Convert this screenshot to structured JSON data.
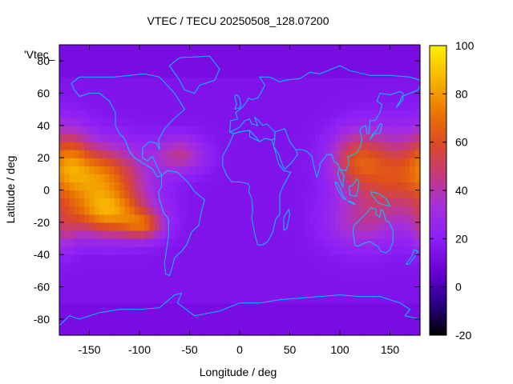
{
  "chart_data": {
    "type": "heatmap",
    "title": "VTEC / TECU 20250508_128.07200",
    "xlabel": "Longitude / deg",
    "ylabel": "Latitude / deg",
    "corner_label": "'Vtec_",
    "xlim": [
      -180,
      180
    ],
    "ylim": [
      -90,
      90
    ],
    "x_ticks": [
      -150,
      -100,
      -50,
      0,
      50,
      100,
      150
    ],
    "y_ticks": [
      -80,
      -60,
      -40,
      -20,
      0,
      20,
      40,
      60,
      80
    ],
    "colorbar": {
      "range": [
        -20,
        100
      ],
      "ticks": [
        -20,
        0,
        20,
        40,
        60,
        80,
        100
      ],
      "palette": [
        "#000000",
        "#2a0088",
        "#6a00d6",
        "#8d1ff7",
        "#a62fdb",
        "#c43a7a",
        "#dd4b21",
        "#ec7a00",
        "#f7b800",
        "#ffee00"
      ]
    },
    "coastline_color": "#00c8ff",
    "background_value": 15,
    "hotspots": [
      {
        "lon": -140,
        "lat": 8,
        "spread_lon": 30,
        "spread_lat": 14,
        "value": 72
      },
      {
        "lon": -130,
        "lat": -15,
        "spread_lon": 28,
        "spread_lat": 10,
        "value": 68
      },
      {
        "lon": -95,
        "lat": -22,
        "spread_lon": 14,
        "spread_lat": 6,
        "value": 48
      },
      {
        "lon": -60,
        "lat": 22,
        "spread_lon": 18,
        "spread_lat": 8,
        "value": 42
      },
      {
        "lon": -170,
        "lat": 22,
        "spread_lon": 14,
        "spread_lat": 14,
        "value": 40
      },
      {
        "lon": 150,
        "lat": 10,
        "spread_lon": 30,
        "spread_lat": 18,
        "value": 55
      },
      {
        "lon": 115,
        "lat": 20,
        "spread_lon": 18,
        "spread_lat": 12,
        "value": 45
      },
      {
        "lon": 120,
        "lat": -20,
        "spread_lon": 25,
        "spread_lat": 12,
        "value": 35
      },
      {
        "lon": -175,
        "lat": -25,
        "spread_lon": 10,
        "spread_lat": 10,
        "value": 32
      }
    ]
  }
}
